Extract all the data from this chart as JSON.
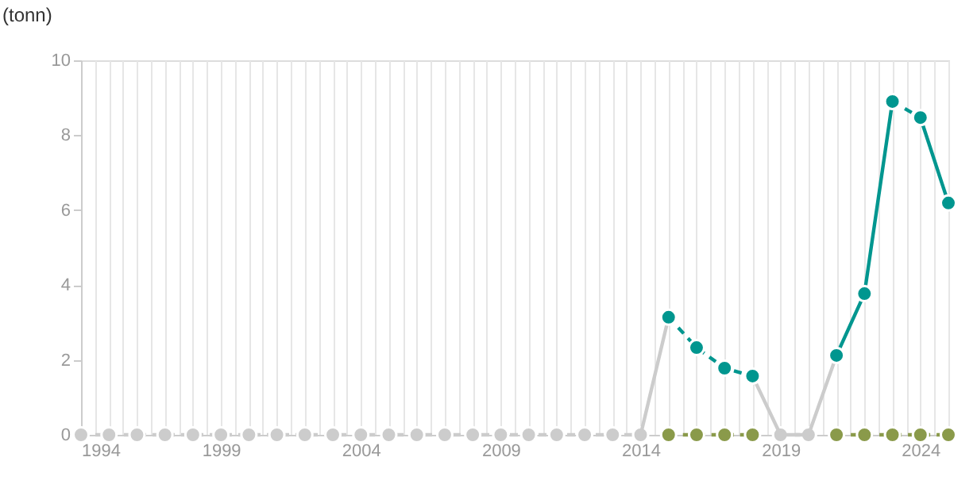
{
  "chart_data": {
    "type": "line",
    "ylabel": "(tonn)",
    "xlim": [
      1994,
      2025
    ],
    "ylim": [
      0,
      10
    ],
    "yticks": [
      0,
      2,
      4,
      6,
      8,
      10
    ],
    "xticks": [
      1994,
      {
        "value": 1994.5,
        "label": null
      },
      {
        "value": 1995,
        "label": null
      },
      {
        "value": 1995.5,
        "label": null
      },
      {
        "value": 1996,
        "label": null
      },
      {
        "value": 1996.5,
        "label": null
      },
      {
        "value": 1997,
        "label": null
      },
      {
        "value": 1997.5,
        "label": null
      },
      {
        "value": 1998,
        "label": null
      },
      {
        "value": 1998.5,
        "label": null
      },
      1999,
      {
        "value": 1999.5,
        "label": null
      },
      {
        "value": 2000,
        "label": null
      },
      {
        "value": 2000.5,
        "label": null
      },
      {
        "value": 2001,
        "label": null
      },
      {
        "value": 2001.5,
        "label": null
      },
      {
        "value": 2002,
        "label": null
      },
      {
        "value": 2002.5,
        "label": null
      },
      {
        "value": 2003,
        "label": null
      },
      {
        "value": 2003.5,
        "label": null
      },
      2004,
      {
        "value": 2004.5,
        "label": null
      },
      {
        "value": 2005,
        "label": null
      },
      {
        "value": 2005.5,
        "label": null
      },
      {
        "value": 2006,
        "label": null
      },
      {
        "value": 2006.5,
        "label": null
      },
      {
        "value": 2007,
        "label": null
      },
      {
        "value": 2007.5,
        "label": null
      },
      {
        "value": 2008,
        "label": null
      },
      {
        "value": 2008.5,
        "label": null
      },
      2009,
      {
        "value": 2009.5,
        "label": null
      },
      {
        "value": 2010,
        "label": null
      },
      {
        "value": 2010.5,
        "label": null
      },
      {
        "value": 2011,
        "label": null
      },
      {
        "value": 2011.5,
        "label": null
      },
      {
        "value": 2012,
        "label": null
      },
      {
        "value": 2012.5,
        "label": null
      },
      {
        "value": 2013,
        "label": null
      },
      {
        "value": 2013.5,
        "label": null
      },
      2014,
      {
        "value": 2014.5,
        "label": null
      },
      {
        "value": 2015,
        "label": null
      },
      {
        "value": 2015.5,
        "label": null
      },
      {
        "value": 2016,
        "label": null
      },
      {
        "value": 2016.5,
        "label": null
      },
      {
        "value": 2017,
        "label": null
      },
      {
        "value": 2017.5,
        "label": null
      },
      {
        "value": 2018,
        "label": null
      },
      {
        "value": 2018.5,
        "label": null
      },
      2019,
      {
        "value": 2019.5,
        "label": null
      },
      {
        "value": 2020,
        "label": null
      },
      {
        "value": 2020.5,
        "label": null
      },
      {
        "value": 2021,
        "label": null
      },
      {
        "value": 2021.5,
        "label": null
      },
      {
        "value": 2022,
        "label": null
      },
      {
        "value": 2022.5,
        "label": null
      },
      {
        "value": 2023,
        "label": null
      },
      {
        "value": 2023.5,
        "label": null
      },
      2024,
      {
        "value": 2024.5,
        "label": null
      },
      {
        "value": 2025,
        "label": null
      }
    ],
    "grid": "x",
    "series": [
      {
        "color": "#cccccc",
        "line_style": "dashed",
        "marker": "circle",
        "x": [
          1994,
          1995,
          1996,
          1997,
          1998,
          1999,
          2000,
          2001,
          2002,
          2003,
          2004,
          2005,
          2006,
          2007,
          2008,
          2009,
          2010,
          2011,
          2012,
          2013,
          2014,
          2015,
          2016,
          2017,
          2018,
          2019,
          2020
        ],
        "values": [
          0,
          0,
          0,
          0,
          0,
          0,
          0,
          0,
          0,
          0,
          0,
          0,
          0,
          0,
          0,
          0,
          0,
          0,
          0,
          0,
          0,
          null,
          null,
          null,
          null,
          0,
          0
        ]
      },
      {
        "color": "#cccccc",
        "line_style": "solid",
        "marker": "none",
        "x": [
          2014,
          2015,
          2016,
          2018,
          2019,
          2020,
          2021
        ],
        "values": [
          0,
          3.14,
          null,
          1.57,
          0,
          0,
          2.12
        ]
      },
      {
        "color": "#8a9a4a",
        "line_style": "dashed",
        "marker": "circle",
        "x": [
          2015,
          2016,
          2017,
          2018,
          2019,
          2020,
          2021,
          2022,
          2023,
          2024,
          2025
        ],
        "values": [
          0,
          0,
          0,
          0,
          null,
          null,
          0,
          0,
          0,
          0,
          0
        ]
      },
      {
        "color": "#00968f",
        "line_style": "dashed",
        "marker": "none",
        "x": [
          2015,
          2016,
          2017,
          2018,
          2019,
          2023,
          2024
        ],
        "values": [
          3.14,
          2.33,
          1.78,
          1.57,
          null,
          8.9,
          8.47
        ]
      },
      {
        "color": "#00968f",
        "line_style": "solid",
        "marker": "none",
        "x": [
          2021,
          2022,
          2023
        ],
        "values": [
          2.12,
          3.77,
          8.9
        ]
      },
      {
        "color": "#00968f",
        "line_style": "solid",
        "marker": "none",
        "x": [
          2024,
          2025
        ],
        "values": [
          8.47,
          6.19
        ]
      },
      {
        "type": "scatter",
        "color": "#00968f",
        "marker": "circle",
        "x": [
          2015,
          2016,
          2017,
          2018,
          2021,
          2022,
          2023,
          2024,
          2025
        ],
        "values": [
          3.14,
          2.33,
          1.78,
          1.57,
          2.12,
          3.77,
          8.9,
          8.47,
          6.19
        ]
      }
    ]
  }
}
